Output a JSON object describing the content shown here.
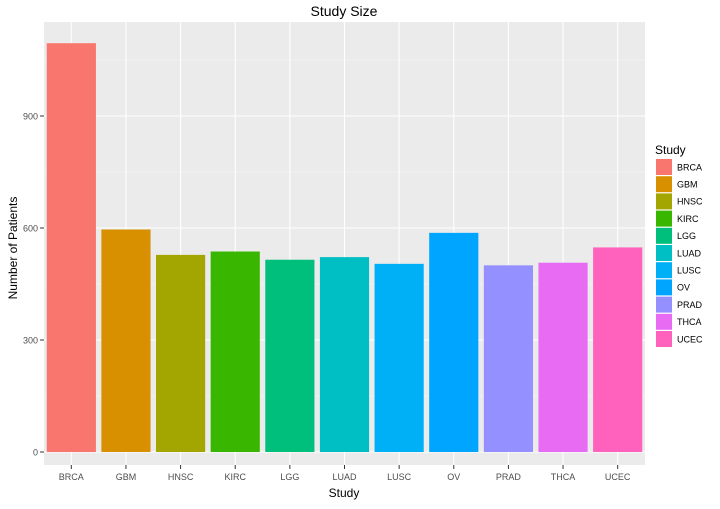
{
  "chart_data": {
    "type": "bar",
    "title": "Study Size",
    "xlabel": "Study",
    "ylabel": "Number of Patients",
    "categories": [
      "BRCA",
      "GBM",
      "HNSC",
      "KIRC",
      "LGG",
      "LUAD",
      "LUSC",
      "OV",
      "PRAD",
      "THCA",
      "UCEC"
    ],
    "values": [
      1095,
      596,
      528,
      537,
      515,
      522,
      504,
      587,
      500,
      507,
      548
    ],
    "colors": [
      "#F8766D",
      "#D89000",
      "#A3A500",
      "#39B600",
      "#00BF7D",
      "#00BFC4",
      "#00B0F6",
      "#00A5FF",
      "#9590FF",
      "#E76BF3",
      "#FF62BC"
    ],
    "ylim": [
      0,
      1175
    ],
    "yticks": [
      0,
      300,
      600,
      900
    ],
    "grid": true,
    "panel_background": "#EBEBEB",
    "legend": {
      "title": "Study",
      "position": "right",
      "entries": [
        "BRCA",
        "GBM",
        "HNSC",
        "KIRC",
        "LGG",
        "LUAD",
        "LUSC",
        "OV",
        "PRAD",
        "THCA",
        "UCEC"
      ]
    }
  }
}
